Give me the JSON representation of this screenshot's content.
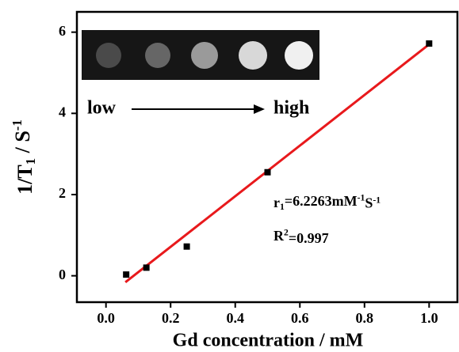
{
  "chart_data": {
    "type": "scatter",
    "xlabel": "Gd concentration / mM",
    "ylabel_parts": [
      "1/T",
      "1",
      " / S",
      "-1"
    ],
    "x": [
      0.0625,
      0.125,
      0.25,
      0.5,
      1.0
    ],
    "values": [
      0.03,
      0.2,
      0.72,
      2.55,
      5.72
    ],
    "color": "#000000",
    "fit": {
      "x": [
        0.06,
        1.0
      ],
      "values": [
        -0.16,
        5.7
      ],
      "color": "#e8191c"
    },
    "xlim": [
      -0.09,
      1.09
    ],
    "ylim": [
      -0.65,
      6.5
    ],
    "xticks": [
      {
        "value": 0,
        "label": "0.0"
      },
      0.2,
      0.4,
      0.6,
      0.8,
      {
        "value": 1,
        "label": "1.0"
      }
    ],
    "yticks": [
      0,
      2,
      4,
      6
    ],
    "inset": {
      "low": "low",
      "high": "high"
    },
    "annotations": [
      [
        "r",
        "1",
        "=6.2263mM",
        "-1",
        "S",
        "-1"
      ],
      [
        "R",
        "2",
        "=0.997"
      ]
    ]
  }
}
